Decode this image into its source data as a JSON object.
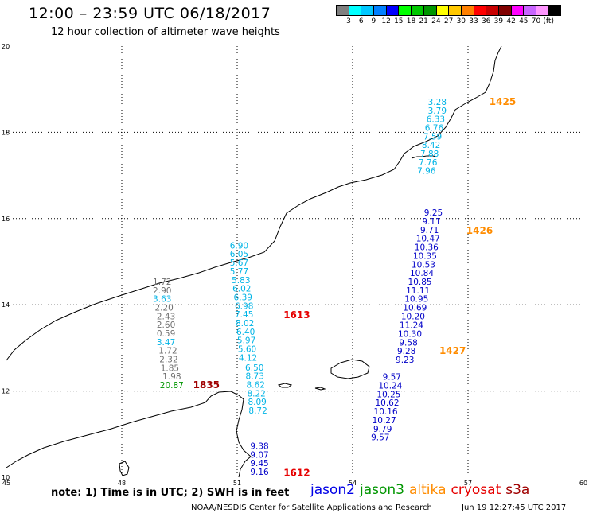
{
  "header": {
    "title": "12:00 – 23:59 UTC 06/18/2017",
    "subtitle": "12 hour collection of altimeter wave heights"
  },
  "scale": {
    "colors": [
      "#7f7f7f",
      "#00ffff",
      "#00c8ff",
      "#0080ff",
      "#0000ff",
      "#00ff00",
      "#00c800",
      "#009600",
      "#ffff00",
      "#ffc800",
      "#ff8000",
      "#ff0000",
      "#c80000",
      "#800000",
      "#ff00ff",
      "#c864ff",
      "#ff96ff",
      "#000000"
    ],
    "labels": [
      "3",
      "6",
      "9",
      "12",
      "15",
      "18",
      "21",
      "24",
      "27",
      "30",
      "33",
      "36",
      "39",
      "42",
      "45",
      "70",
      "(ft)"
    ]
  },
  "chart_data": {
    "type": "scatter",
    "xlim": [
      45,
      60
    ],
    "ylim": [
      10,
      20
    ],
    "x_ticks": [
      45,
      48,
      51,
      54,
      57,
      60
    ],
    "y_ticks": [
      10,
      12,
      14,
      16,
      18,
      20
    ],
    "grid": true,
    "series": [
      {
        "name": "jason2",
        "color": "#0000c8",
        "points": [
          {
            "x": 56.1,
            "y": 16.14,
            "v": "9.25"
          },
          {
            "x": 56.05,
            "y": 15.94,
            "v": "9.11"
          },
          {
            "x": 56.0,
            "y": 15.74,
            "v": "9.71"
          },
          {
            "x": 55.96,
            "y": 15.54,
            "v": "10.47"
          },
          {
            "x": 55.92,
            "y": 15.34,
            "v": "10.36"
          },
          {
            "x": 55.88,
            "y": 15.14,
            "v": "10.35"
          },
          {
            "x": 55.84,
            "y": 14.94,
            "v": "10.53"
          },
          {
            "x": 55.8,
            "y": 14.74,
            "v": "10.84"
          },
          {
            "x": 55.75,
            "y": 14.54,
            "v": "10.85"
          },
          {
            "x": 55.7,
            "y": 14.34,
            "v": "11.11"
          },
          {
            "x": 55.66,
            "y": 14.14,
            "v": "10.95"
          },
          {
            "x": 55.62,
            "y": 13.94,
            "v": "10.69"
          },
          {
            "x": 55.57,
            "y": 13.74,
            "v": "10.20"
          },
          {
            "x": 55.53,
            "y": 13.53,
            "v": "11.24"
          },
          {
            "x": 55.49,
            "y": 13.33,
            "v": "10.30"
          },
          {
            "x": 55.45,
            "y": 13.13,
            "v": "9.58"
          },
          {
            "x": 55.4,
            "y": 12.93,
            "v": "9.28"
          },
          {
            "x": 55.36,
            "y": 12.73,
            "v": "9.23"
          },
          {
            "x": 55.02,
            "y": 12.33,
            "v": "9.57"
          },
          {
            "x": 54.98,
            "y": 12.13,
            "v": "10.24"
          },
          {
            "x": 54.94,
            "y": 11.93,
            "v": "10.25"
          },
          {
            "x": 54.9,
            "y": 11.73,
            "v": "10.62"
          },
          {
            "x": 54.86,
            "y": 11.53,
            "v": "10.16"
          },
          {
            "x": 54.82,
            "y": 11.33,
            "v": "10.27"
          },
          {
            "x": 54.78,
            "y": 11.13,
            "v": "9.79"
          },
          {
            "x": 54.72,
            "y": 10.93,
            "v": "9.57"
          },
          {
            "x": 51.58,
            "y": 10.73,
            "v": "9.38"
          },
          {
            "x": 51.58,
            "y": 10.53,
            "v": "9.07"
          },
          {
            "x": 51.58,
            "y": 10.33,
            "v": "9.45"
          },
          {
            "x": 51.58,
            "y": 10.13,
            "v": "9.16"
          }
        ]
      },
      {
        "name": "cyan track (jason2 east)",
        "color": "#00b4e6",
        "points": [
          {
            "x": 56.2,
            "y": 18.71,
            "v": "3.28"
          },
          {
            "x": 56.2,
            "y": 18.51,
            "v": "3.79"
          },
          {
            "x": 56.16,
            "y": 18.31,
            "v": "6.33"
          },
          {
            "x": 56.12,
            "y": 18.11,
            "v": "6.76"
          },
          {
            "x": 56.08,
            "y": 17.91,
            "v": "7.59"
          },
          {
            "x": 56.04,
            "y": 17.71,
            "v": "8.42"
          },
          {
            "x": 56.0,
            "y": 17.51,
            "v": "7.88"
          },
          {
            "x": 55.96,
            "y": 17.31,
            "v": "7.76"
          },
          {
            "x": 55.92,
            "y": 17.11,
            "v": "7.96"
          }
        ]
      },
      {
        "name": "cyan track (jason2 central)",
        "color": "#00b4e6",
        "points": [
          {
            "x": 51.05,
            "y": 15.38,
            "v": "6.90"
          },
          {
            "x": 51.05,
            "y": 15.18,
            "v": "6.05"
          },
          {
            "x": 51.05,
            "y": 14.98,
            "v": "5.67"
          },
          {
            "x": 51.05,
            "y": 14.78,
            "v": "5.77"
          },
          {
            "x": 51.1,
            "y": 14.58,
            "v": "5.83"
          },
          {
            "x": 51.12,
            "y": 14.38,
            "v": "6.02"
          },
          {
            "x": 51.15,
            "y": 14.18,
            "v": "6.39"
          },
          {
            "x": 51.18,
            "y": 13.98,
            "v": "6.98"
          },
          {
            "x": 51.18,
            "y": 13.78,
            "v": "7.45"
          },
          {
            "x": 51.2,
            "y": 13.58,
            "v": "8.02"
          },
          {
            "x": 51.22,
            "y": 13.38,
            "v": "6.40"
          },
          {
            "x": 51.24,
            "y": 13.18,
            "v": "5.97"
          },
          {
            "x": 51.26,
            "y": 12.98,
            "v": "5.60"
          },
          {
            "x": 51.28,
            "y": 12.78,
            "v": "4.12"
          },
          {
            "x": 51.45,
            "y": 12.55,
            "v": "6.50"
          },
          {
            "x": 51.46,
            "y": 12.35,
            "v": "8.73"
          },
          {
            "x": 51.48,
            "y": 12.15,
            "v": "8.62"
          },
          {
            "x": 51.5,
            "y": 11.95,
            "v": "8.22"
          },
          {
            "x": 51.52,
            "y": 11.75,
            "v": "8.09"
          },
          {
            "x": 51.54,
            "y": 11.55,
            "v": "8.72"
          }
        ]
      },
      {
        "name": "grey track",
        "color": "#707070",
        "points": [
          {
            "x": 49.05,
            "y": 14.54,
            "v": "1.72"
          },
          {
            "x": 49.05,
            "y": 14.34,
            "v": "2.90"
          },
          {
            "x": 49.05,
            "y": 14.14,
            "v": "3.63",
            "c": "#00b4e6"
          },
          {
            "x": 49.1,
            "y": 13.94,
            "v": "2.20"
          },
          {
            "x": 49.15,
            "y": 13.74,
            "v": "2.43"
          },
          {
            "x": 49.15,
            "y": 13.54,
            "v": "2.60"
          },
          {
            "x": 49.15,
            "y": 13.34,
            "v": "0.59"
          },
          {
            "x": 49.15,
            "y": 13.14,
            "v": "3.47",
            "c": "#00b4e6"
          },
          {
            "x": 49.2,
            "y": 12.94,
            "v": "1.72"
          },
          {
            "x": 49.22,
            "y": 12.74,
            "v": "2.32"
          },
          {
            "x": 49.25,
            "y": 12.54,
            "v": "1.85"
          },
          {
            "x": 49.3,
            "y": 12.34,
            "v": "1.98"
          },
          {
            "x": 49.3,
            "y": 12.14,
            "v": "20.87",
            "c": "#009600"
          }
        ]
      }
    ],
    "time_labels": [
      {
        "x": 57.9,
        "y": 18.71,
        "v": "1425",
        "color": "#ff8c00"
      },
      {
        "x": 57.3,
        "y": 15.72,
        "v": "1426",
        "color": "#ff8c00"
      },
      {
        "x": 56.6,
        "y": 12.93,
        "v": "1427",
        "color": "#ff8c00"
      },
      {
        "x": 52.55,
        "y": 13.76,
        "v": "1613",
        "color": "#e60000"
      },
      {
        "x": 52.55,
        "y": 10.1,
        "v": "1612",
        "color": "#e60000"
      },
      {
        "x": 50.2,
        "y": 12.14,
        "v": "1835",
        "color": "#a00000"
      }
    ]
  },
  "note": "note: 1) Time is in UTC; 2) SWH is in feet",
  "satellites": [
    {
      "name": "jason2",
      "color": "#0000e6"
    },
    {
      "name": "jason3",
      "color": "#009600"
    },
    {
      "name": "altika",
      "color": "#ff8c00"
    },
    {
      "name": "cryosat",
      "color": "#e60000"
    },
    {
      "name": "s3a",
      "color": "#a00000"
    }
  ],
  "footer": {
    "credit": "NOAA/NESDIS Center for Satellite Applications and Research",
    "timestamp": "Jun 19 12:27:45 UTC 2017"
  }
}
